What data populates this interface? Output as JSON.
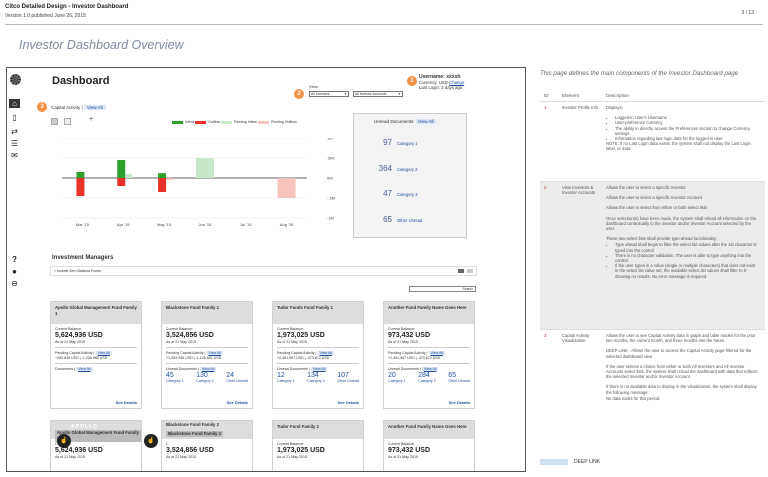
{
  "header": {
    "title": "Citco Detailed Design - Investor Dashboard",
    "version": "Version 1.0 published June 26, 2015",
    "page": "3 / 13"
  },
  "page_title": "Investor Dashboard Overview",
  "dashboard": {
    "title": "Dashboard",
    "view_label": "View:",
    "investor_select": "All Investors",
    "account_select": "All Investor Accounts",
    "user": {
      "label": "Username: xxxxh",
      "currency_label": "Currency: USD",
      "change": "Change",
      "last_login": "Last Login: 2 days ago"
    },
    "callouts": [
      "1",
      "2",
      "3"
    ],
    "tab_label": "Capital Activity",
    "view_all": "View All",
    "legend": [
      {
        "label": "Inflow",
        "color": "#2ca02c"
      },
      {
        "label": "Outflow",
        "color": "#e8312a"
      },
      {
        "label": "Pending Inflow",
        "color": "#c8e6c8"
      },
      {
        "label": "Pending Outflow",
        "color": "#f7c4bd"
      }
    ],
    "unread": {
      "title": "Unread Documents",
      "view_all": "View All",
      "rows": [
        {
          "n": "97",
          "label": "Category 1"
        },
        {
          "n": "364",
          "label": "Category 2"
        },
        {
          "n": "47",
          "label": "Category 3"
        },
        {
          "n": "65",
          "label": "Other Unread"
        }
      ]
    },
    "investment_managers": "Investment Managers",
    "include_zero": "Include Zero Balance Funds",
    "search_placeholder": "Search",
    "cards": [
      {
        "title": "Apollo Global Management Fund Family 1",
        "bal_label": "Current Balance:",
        "amt": "5,624,936 USD",
        "asof": "As of 21 May 2015",
        "pca": "Pending Capital Activity",
        "pca_va": "View All",
        "pca_val": "+263,845 USD | -1,236,985 USD",
        "docs": "Documents",
        "docs_va": "View All",
        "see": "See Details"
      },
      {
        "title": "Blackstone Fund Family 1",
        "bal_label": "Current Balance:",
        "amt": "3,524,856 USD",
        "asof": "As of 21 May 2015",
        "pca": "Pending Capital Activity",
        "pca_va": "View All",
        "pca_val": "+1,263,936 USD | -1,126,831 USD",
        "ud": "Unread Documents",
        "ud_va": "View All",
        "u1": "45",
        "u1l": "Category 1",
        "u2": "130",
        "u2l": "Category 2",
        "u3": "24",
        "u3l": "Other Unread",
        "see": "See Details"
      },
      {
        "title": "Tudor Funds Fund Family 1",
        "bal_label": "Current Balance:",
        "amt": "1,973,025 USD",
        "asof": "As of 21 May 2015",
        "pca": "Pending Capital Activity",
        "pca_va": "View All",
        "pca_val": "+2,451,967 USD | -473,672 USD",
        "ud": "Unread Documents",
        "ud_va": "View All",
        "u1": "12",
        "u1l": "Category 1",
        "u2": "134",
        "u2l": "Category 2",
        "u3": "107",
        "u3l": "Other Unread",
        "see": "See Details"
      },
      {
        "title": "Another Fund Family Name Goes Here",
        "bal_label": "Current Balance:",
        "amt": "973,432 USD",
        "asof": "As of 21 May 2015",
        "pca": "Pending Capital Activity",
        "pca_va": "View All",
        "pca_val": "+2,451,967 USD | -473,672 USD",
        "ud": "Unread Documents",
        "ud_va": "View All",
        "u1": "20",
        "u1l": "Category 1",
        "u2": "284",
        "u2l": "Category 2",
        "u3": "65",
        "u3l": "Other Unread",
        "see": "See Details"
      }
    ],
    "cards2": [
      {
        "title": "Apollo Global Management Fund Family 2",
        "overlay": "APOLLO",
        "bal_label": "Current B",
        "amt": "5,624,936 USD",
        "asof": "As of 21 May 2015"
      },
      {
        "title": "Blackstone Fund Family 2",
        "overlay": "Blackstone Fund Family 2",
        "bal_label": "C",
        "amt": "3,524,856 USD",
        "asof": "As of 21 May 2015"
      },
      {
        "title": "Tudor Fund Family 2",
        "bal_label": "Current Balance:",
        "amt": "1,973,025 USD",
        "asof": "As of 21 May 2015"
      },
      {
        "title": "Another Fund Family Name Goes Here",
        "bal_label": "Current Balance:",
        "amt": "973,432 USD",
        "asof": "As of 21 May 2015"
      }
    ]
  },
  "chart_data": {
    "type": "bar",
    "categories": [
      "Mar '15",
      "Apr '15",
      "May '15",
      "Jun '15",
      "Jul '15",
      "Aug '15"
    ],
    "yticks": [
      "1M",
      ".5M",
      "0M",
      "-.5M",
      "-1M"
    ],
    "ylim": [
      -1,
      1
    ],
    "series": [
      {
        "name": "Inflow",
        "values": [
          0.15,
          0.45,
          0.12,
          0,
          0,
          0
        ]
      },
      {
        "name": "Outflow",
        "values": [
          -0.45,
          -0.2,
          -0.35,
          0,
          0,
          0
        ]
      },
      {
        "name": "Pending Inflow",
        "values": [
          0,
          0.1,
          0,
          0.5,
          0,
          0
        ]
      },
      {
        "name": "Pending Outflow",
        "values": [
          0,
          0,
          -0.05,
          0,
          0,
          -0.5
        ]
      }
    ]
  },
  "spec": {
    "intro": "This page defines the main components of the Investor Dashboard page",
    "cols": {
      "id": "ID",
      "element": "Element",
      "desc": "Description"
    },
    "rows": [
      {
        "id": "1",
        "element": "Investor Profile Info",
        "lead": "Displays:",
        "bullets": [
          "Logged-in User's Username",
          "User-preference currency",
          "The ability to directly access the Preferences section to change Currency settings",
          "Information regarding last login date for the logged-in user"
        ],
        "note": "NOTE: If no Last Login data exists, the system shall not display the Last Login label, or data."
      },
      {
        "id": "2",
        "element": "View Investors & Investor Accounts",
        "paras": [
          "Allows the user to select a specific Investor",
          "Allows the user to select a specific Investor Account",
          "Allows the user to select from either or both select lists",
          "Once selection(s) have been made, the system shall reload all information on the dashboard contextually to the investor and/or Investor Account selected by the user.",
          "These two select lists shall provide type-ahead functionality:"
        ],
        "bullets": [
          "Type ahead shall begin to filter the select list values after the 1st character is typed into the control",
          "There is no character validation. The user is able to type anything into the control.",
          "If the user types in a value (single or multiple characters) that does not exist in the select list value set, the available select list values shall filter to 0- showing no results. No error message is required."
        ]
      },
      {
        "id": "3",
        "element": "Capital Activity Visualization",
        "paras": [
          "Allows the user to see Capital Activity data in graph and table modes for the prior two months, the current month, and three months into the future.",
          "DEEP LINK - Allows the user to access the Capital Activity page-filtered for the selected dashboard view",
          "If the user selects a choice from either or both All Investors and All Investor Accounts select lists, the system shall reload the dashboard with data that reflects the selected Investor and/or Investor Account.",
          "If there is no available data to display in the visualization, the system shall display the following message:",
          "No data exists for this period."
        ]
      }
    ],
    "deep_link": "DEEP LINK"
  }
}
